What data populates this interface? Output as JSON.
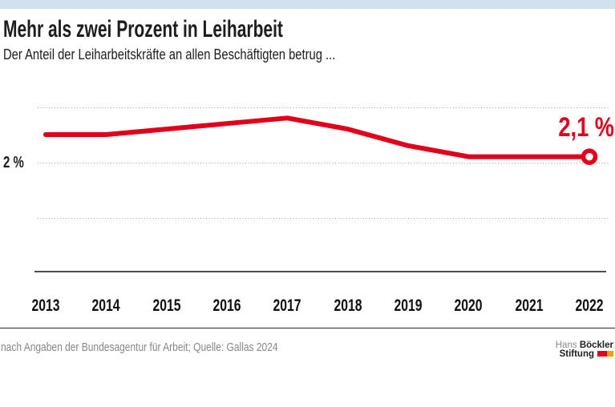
{
  "page": {
    "title": "Mehr als zwei Prozent in Leiharbeit",
    "subtitle": "Der Anteil der Leiharbeitskräfte an allen Beschäftigten betrug ...",
    "topbar_color": "#cfe2ee"
  },
  "chart_data": {
    "type": "line",
    "categories": [
      "2013",
      "2014",
      "2015",
      "2016",
      "2017",
      "2018",
      "2019",
      "2020",
      "2021",
      "2022"
    ],
    "values": [
      2.5,
      2.5,
      2.6,
      2.7,
      2.8,
      2.6,
      2.3,
      2.1,
      2.1,
      2.1
    ],
    "unit": "%",
    "title": "Mehr als zwei Prozent in Leiharbeit",
    "xlabel": "",
    "ylabel": "",
    "end_label": "2,1 %",
    "line_color": "#e2001a",
    "grid": "dotted horizontal",
    "legend": "none",
    "y_axis": {
      "axis_label": "2 %",
      "gridline_values": [
        3,
        2,
        1
      ],
      "labeled_gridline": 2,
      "ylim": [
        0,
        3.2
      ]
    }
  },
  "footer": {
    "source": "nach Angaben der Bundesagentur für Arbeit; Quelle: Gallas 2024",
    "logo": {
      "line1_light": "Hans",
      "line1_bold": "Böckler",
      "line2_bold": "Stiftung",
      "block_red": "#e2001a",
      "block_orange": "#f59b00"
    }
  }
}
